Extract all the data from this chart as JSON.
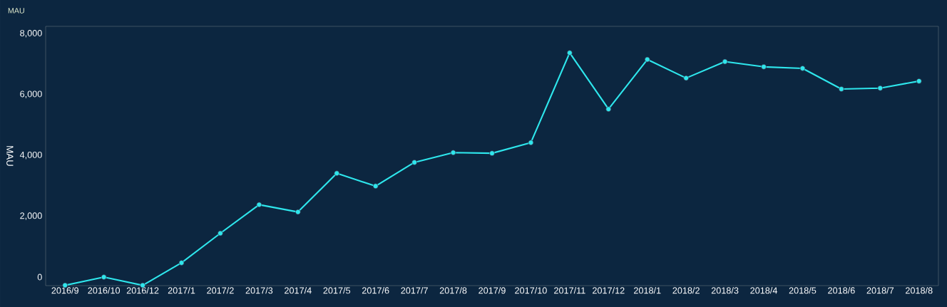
{
  "chart_data": {
    "type": "line",
    "title": "MAU",
    "ylabel": "MAU",
    "categories": [
      "2016/9",
      "2016/10",
      "2016/12",
      "2017/1",
      "2017/2",
      "2017/3",
      "2017/4",
      "2017/5",
      "2017/6",
      "2017/7",
      "2017/8",
      "2017/9",
      "2017/10",
      "2017/11",
      "2017/12",
      "2018/1",
      "2018/2",
      "2018/3",
      "2018/4",
      "2018/5",
      "2018/6",
      "2018/7",
      "2018/8"
    ],
    "series": [
      {
        "color": "#2ee6ec",
        "values": [
          -270,
          0,
          -270,
          470,
          1440,
          2380,
          2140,
          3410,
          2990,
          3770,
          4090,
          4070,
          4420,
          7370,
          5520,
          7150,
          6540,
          7080,
          6910,
          6860,
          6180,
          6210,
          6440
        ]
      }
    ],
    "ylim": [
      -280,
      8240
    ],
    "yticks": [
      {
        "value": 0,
        "label": "0"
      },
      {
        "value": 2000,
        "label": "2,000"
      },
      {
        "value": 4000,
        "label": "4,000"
      },
      {
        "value": 6000,
        "label": "6,000"
      },
      {
        "value": 8000,
        "label": "8,000"
      }
    ],
    "marker": "circle",
    "line_style": "solid",
    "grid": false
  }
}
